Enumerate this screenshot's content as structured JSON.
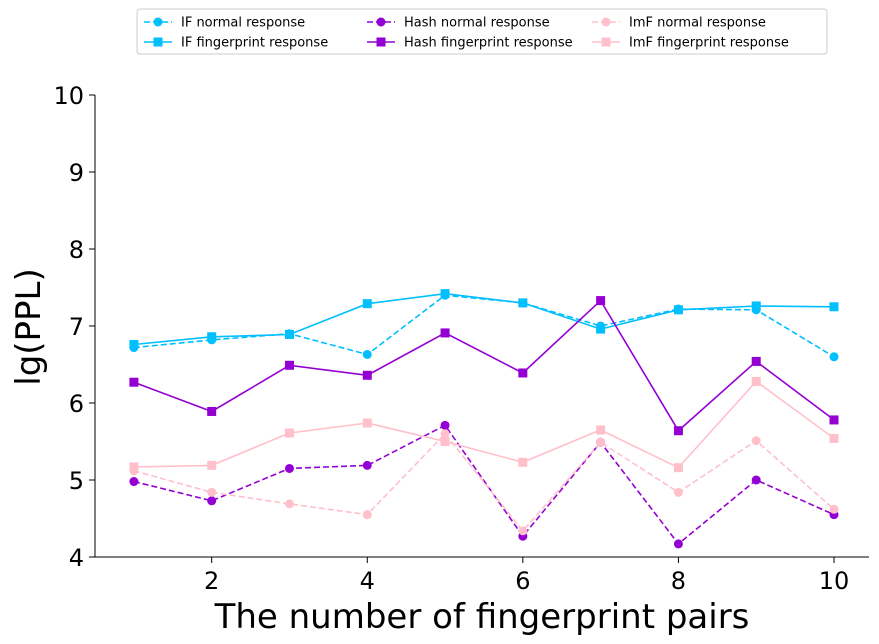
{
  "chart_data": {
    "type": "line",
    "title": "",
    "xlabel": "The number of fingerprint pairs",
    "ylabel": "lg(PPL)",
    "xlim": [
      0.5,
      10.45
    ],
    "ylim": [
      4,
      10
    ],
    "x": [
      1,
      2,
      3,
      4,
      5,
      6,
      7,
      8,
      9,
      10
    ],
    "xticks": [
      2,
      4,
      6,
      8,
      10
    ],
    "yticks": [
      4,
      5,
      6,
      7,
      8,
      9,
      10
    ],
    "grid": false,
    "legend_position": "top-center",
    "series": [
      {
        "name": "IF normal response",
        "color": "#00bfff",
        "dash": true,
        "marker": "circle",
        "values": [
          6.72,
          6.82,
          6.9,
          6.63,
          7.4,
          7.3,
          7.0,
          7.22,
          7.21,
          6.6
        ]
      },
      {
        "name": "IF fingerprint response",
        "color": "#00bfff",
        "dash": false,
        "marker": "square",
        "values": [
          6.76,
          6.86,
          6.89,
          7.29,
          7.42,
          7.3,
          6.96,
          7.21,
          7.26,
          7.25
        ]
      },
      {
        "name": "Hash normal response",
        "color": "#9400d3",
        "dash": true,
        "marker": "circle",
        "values": [
          4.98,
          4.73,
          5.15,
          5.19,
          5.71,
          4.27,
          5.49,
          4.17,
          5.0,
          4.55
        ]
      },
      {
        "name": "Hash fingerprint response",
        "color": "#9400d3",
        "dash": false,
        "marker": "square",
        "values": [
          6.27,
          5.89,
          6.49,
          6.36,
          6.91,
          6.39,
          7.33,
          5.64,
          6.54,
          5.78
        ]
      },
      {
        "name": "ImF normal response",
        "color": "#ffc0cb",
        "dash": true,
        "marker": "circle",
        "values": [
          5.12,
          4.84,
          4.69,
          4.55,
          5.6,
          4.34,
          5.49,
          4.84,
          5.51,
          4.62
        ]
      },
      {
        "name": "ImF fingerprint response",
        "color": "#ffc0cb",
        "dash": false,
        "marker": "square",
        "values": [
          5.17,
          5.19,
          5.61,
          5.74,
          5.5,
          5.23,
          5.65,
          5.16,
          6.28,
          5.54
        ]
      }
    ]
  }
}
